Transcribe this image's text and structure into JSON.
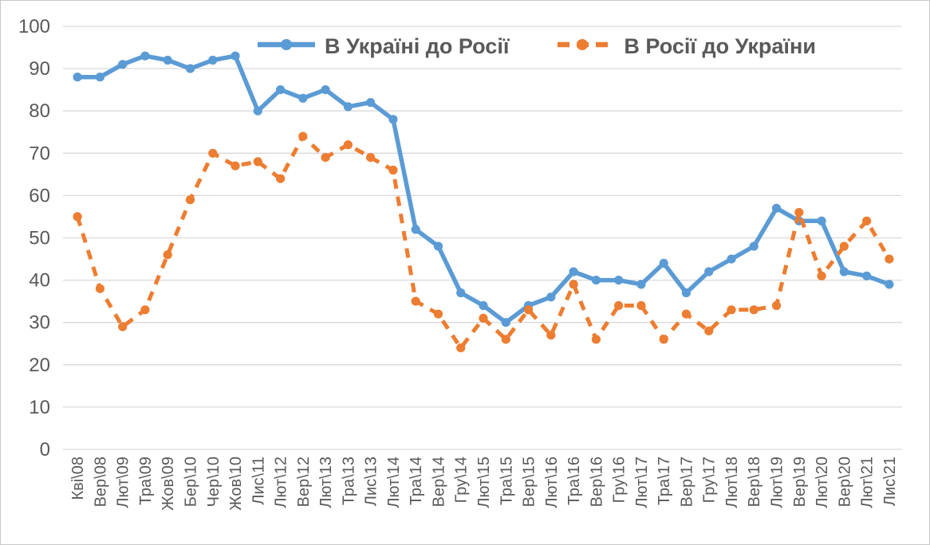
{
  "chart_data": {
    "type": "line",
    "title": "",
    "xlabel": "",
    "ylabel": "",
    "ylim": [
      0,
      100
    ],
    "yticks": [
      0,
      10,
      20,
      30,
      40,
      50,
      60,
      70,
      80,
      90,
      100
    ],
    "grid": true,
    "legend_position": "top",
    "categories": [
      "Кві\\08",
      "Вер\\08",
      "Лют\\09",
      "Тра\\09",
      "Жов\\09",
      "Бер\\10",
      "Чер\\10",
      "Жов\\10",
      "Лис\\11",
      "Лют\\12",
      "Вер\\12",
      "Лют\\13",
      "Тра\\13",
      "Лис\\13",
      "Лют\\14",
      "Тра\\14",
      "Вер\\14",
      "Гру\\14",
      "Лют\\15",
      "Тра\\15",
      "Вер\\15",
      "Лют\\16",
      "Тра\\16",
      "Вер\\16",
      "Гру\\16",
      "Лют\\17",
      "Тра\\17",
      "Вер\\17",
      "Гру\\17",
      "Лют\\18",
      "Вер\\18",
      "Лют\\19",
      "Вер\\19",
      "Лют\\20",
      "Вер\\20",
      "Лют\\21",
      "Лис\\21"
    ],
    "series": [
      {
        "name": "В Україні до Росії",
        "color": "#5B9BD5",
        "line_style": "solid",
        "marker": "circle",
        "values": [
          88,
          88,
          91,
          93,
          92,
          90,
          92,
          93,
          80,
          85,
          83,
          85,
          81,
          82,
          78,
          52,
          48,
          37,
          34,
          30,
          34,
          36,
          42,
          40,
          40,
          39,
          44,
          37,
          42,
          45,
          48,
          57,
          54,
          54,
          42,
          41,
          39
        ]
      },
      {
        "name": "В Росії до України",
        "color": "#ED7D31",
        "line_style": "dashed",
        "marker": "circle",
        "values": [
          55,
          38,
          29,
          33,
          46,
          59,
          70,
          67,
          68,
          64,
          74,
          69,
          72,
          69,
          66,
          35,
          32,
          24,
          31,
          26,
          33,
          27,
          39,
          26,
          34,
          34,
          26,
          32,
          28,
          33,
          33,
          34,
          56,
          41,
          48,
          54,
          45
        ]
      }
    ]
  },
  "colors": {
    "gridline": "#D9D9D9",
    "axis_text": "#595959",
    "legend_text": "#595959",
    "background": "#FFFFFF",
    "border": "#C9C9C9"
  }
}
